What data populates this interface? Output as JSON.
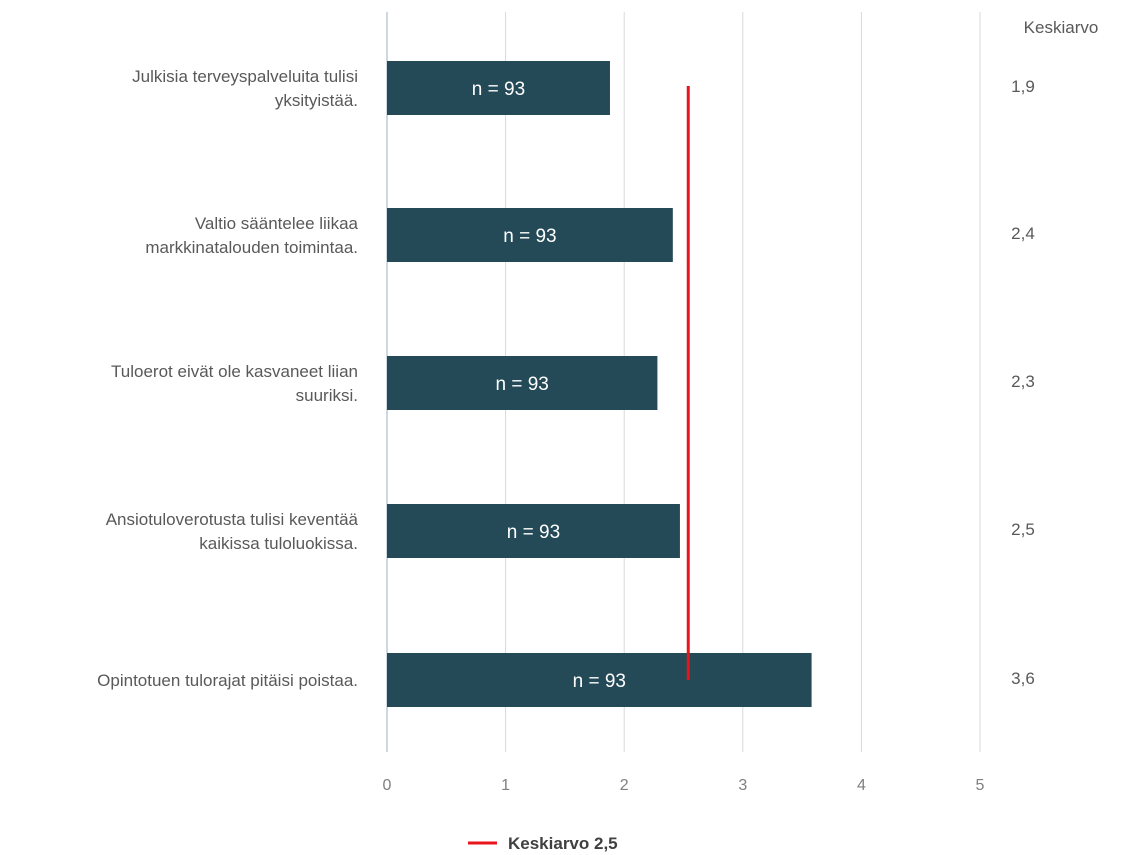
{
  "chart_data": {
    "type": "bar",
    "orientation": "horizontal",
    "categories": [
      [
        "Julkisia terveyspalveluita tulisi",
        "yksityistää."
      ],
      [
        "Valtio sääntelee liikaa",
        "markkinatalouden toimintaa."
      ],
      [
        "Tuloerot eivät ole kasvaneet liian",
        "suuriksi."
      ],
      [
        "Ansiotuloverotusta tulisi keventää",
        "kaikissa tuloluokissa."
      ],
      [
        "Opintotuen tulorajat pitäisi poistaa."
      ]
    ],
    "values": [
      1.88,
      2.41,
      2.28,
      2.47,
      3.58
    ],
    "bar_labels": [
      "n = 93",
      "n = 93",
      "n = 93",
      "n = 93",
      "n = 93"
    ],
    "mean_column_header": "Keskiarvo",
    "mean_labels": [
      "1,9",
      "2,4",
      "2,3",
      "2,5",
      "3,6"
    ],
    "xlim": [
      0,
      5
    ],
    "xticks": [
      "0",
      "1",
      "2",
      "3",
      "4",
      "5"
    ],
    "reference_line": {
      "value": 2.54,
      "color": "#e8141b"
    },
    "legend": {
      "label": "Keskiarvo 2,5",
      "position": "bottom-center"
    },
    "colors": {
      "bar": "#244a57",
      "grid": "#d9d9d9",
      "axis": "#bfcbd6"
    }
  }
}
